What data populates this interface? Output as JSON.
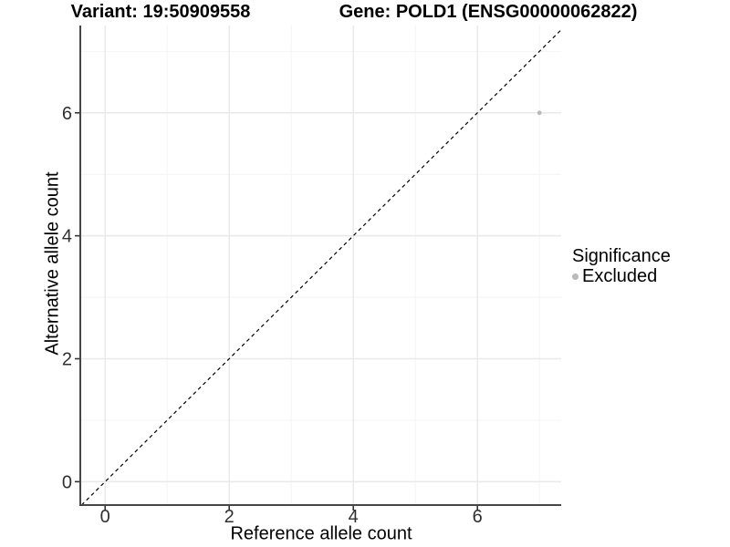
{
  "chart_data": {
    "type": "scatter",
    "titles": {
      "left": "Variant: 19:50909558",
      "right": "Gene: POLD1 (ENSG00000062822)"
    },
    "xlabel": "Reference allele count",
    "ylabel": "Alternative allele count",
    "xlim": [
      -0.4,
      7.35
    ],
    "ylim": [
      -0.38,
      7.42
    ],
    "x_ticks": [
      0,
      2,
      4,
      6
    ],
    "y_ticks": [
      0,
      2,
      4,
      6
    ],
    "x_minor_grid": [
      1,
      3,
      5,
      7
    ],
    "y_minor_grid": [
      1,
      3,
      5,
      7
    ],
    "grid": "on",
    "series": [
      {
        "name": "Excluded",
        "color": "#b9b9b9",
        "points": [
          {
            "x": 7,
            "y": 6
          }
        ]
      }
    ],
    "reference_line": {
      "kind": "identity-y-equals-x",
      "style": "dashed",
      "color": "#000000"
    },
    "legend": {
      "title": "Significance",
      "position": "right",
      "items": [
        {
          "label": "Excluded",
          "color": "#b9b9b9"
        }
      ]
    },
    "colors": {
      "background": "#ffffff",
      "axis_line": "#464646",
      "tick_mark": "#333333",
      "tick_label": "#303030",
      "grid_major": "#e9e9e9",
      "grid_minor": "#f4f4f4"
    }
  }
}
